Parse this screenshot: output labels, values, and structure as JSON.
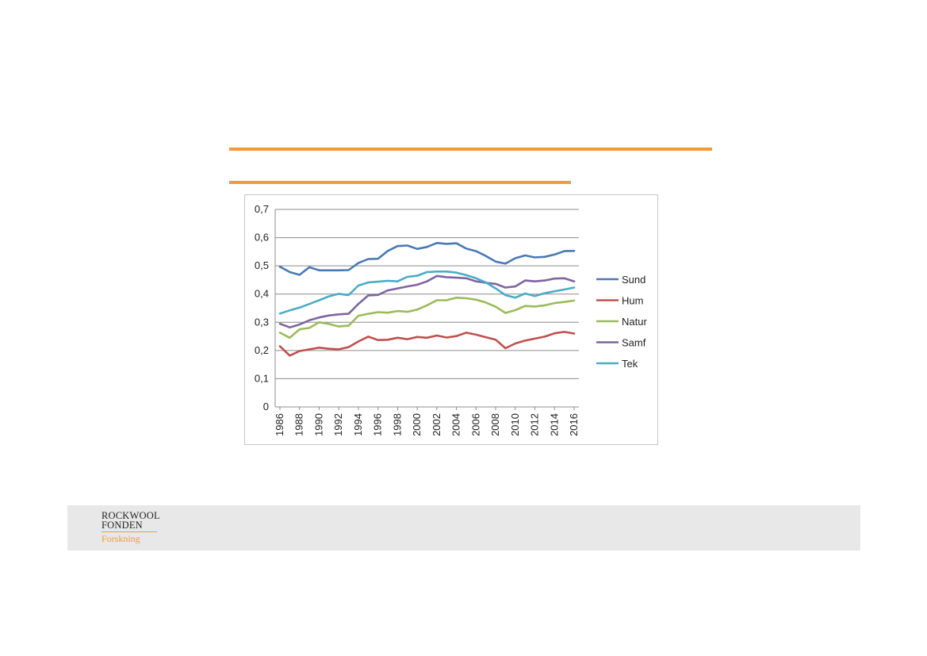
{
  "colors": {
    "accent": "#f39a35",
    "footer_bg": "#e8e8e8",
    "gridline": "#8c8c8c"
  },
  "footer": {
    "logo_line1": "ROCKWOOL",
    "logo_line2": "FONDEN",
    "logo_sub": "Forskning"
  },
  "chart_data": {
    "type": "line",
    "title": "",
    "xlabel": "",
    "ylabel": "",
    "ylim": [
      0,
      0.7
    ],
    "grid": true,
    "legend_position": "right",
    "x": [
      1986,
      1987,
      1988,
      1989,
      1990,
      1991,
      1992,
      1993,
      1994,
      1995,
      1996,
      1997,
      1998,
      1999,
      2000,
      2001,
      2002,
      2003,
      2004,
      2005,
      2006,
      2007,
      2008,
      2009,
      2010,
      2011,
      2012,
      2013,
      2014,
      2015,
      2016
    ],
    "x_tick_labels": [
      "1986",
      "1988",
      "1990",
      "1992",
      "1994",
      "1996",
      "1998",
      "2000",
      "2002",
      "2004",
      "2006",
      "2008",
      "2010",
      "2012",
      "2014",
      "2016"
    ],
    "y_ticks": [
      0,
      0.1,
      0.2,
      0.3,
      0.4,
      0.5,
      0.6,
      0.7
    ],
    "y_tick_labels": [
      "0",
      "0,1",
      "0,2",
      "0,3",
      "0,4",
      "0,5",
      "0,6",
      "0,7"
    ],
    "series": [
      {
        "name": "Sund",
        "color": "#4a7ab5",
        "values": [
          0.497,
          0.478,
          0.468,
          0.495,
          0.484,
          0.484,
          0.484,
          0.485,
          0.51,
          0.524,
          0.525,
          0.553,
          0.57,
          0.572,
          0.56,
          0.567,
          0.581,
          0.578,
          0.58,
          0.561,
          0.552,
          0.535,
          0.515,
          0.508,
          0.527,
          0.537,
          0.53,
          0.532,
          0.54,
          0.552,
          0.553
        ]
      },
      {
        "name": "Hum",
        "color": "#c0504d",
        "values": [
          0.215,
          0.182,
          0.198,
          0.204,
          0.21,
          0.206,
          0.204,
          0.212,
          0.232,
          0.249,
          0.237,
          0.238,
          0.245,
          0.24,
          0.248,
          0.245,
          0.253,
          0.246,
          0.251,
          0.263,
          0.256,
          0.247,
          0.238,
          0.208,
          0.225,
          0.235,
          0.242,
          0.249,
          0.261,
          0.266,
          0.26
        ]
      },
      {
        "name": "Natur",
        "color": "#9bbb59",
        "values": [
          0.263,
          0.245,
          0.275,
          0.28,
          0.3,
          0.294,
          0.285,
          0.288,
          0.323,
          0.33,
          0.336,
          0.334,
          0.34,
          0.337,
          0.345,
          0.36,
          0.378,
          0.378,
          0.387,
          0.385,
          0.38,
          0.37,
          0.355,
          0.333,
          0.343,
          0.358,
          0.356,
          0.36,
          0.368,
          0.372,
          0.377
        ]
      },
      {
        "name": "Samf",
        "color": "#8064a2",
        "values": [
          0.295,
          0.282,
          0.292,
          0.307,
          0.317,
          0.324,
          0.328,
          0.33,
          0.365,
          0.395,
          0.397,
          0.413,
          0.42,
          0.427,
          0.433,
          0.445,
          0.464,
          0.46,
          0.458,
          0.456,
          0.445,
          0.44,
          0.436,
          0.423,
          0.427,
          0.448,
          0.445,
          0.448,
          0.455,
          0.456,
          0.445
        ]
      },
      {
        "name": "Tek",
        "color": "#4bacc6",
        "values": [
          0.331,
          0.342,
          0.352,
          0.365,
          0.378,
          0.392,
          0.401,
          0.396,
          0.43,
          0.441,
          0.444,
          0.447,
          0.445,
          0.461,
          0.465,
          0.478,
          0.48,
          0.48,
          0.476,
          0.467,
          0.456,
          0.441,
          0.42,
          0.396,
          0.387,
          0.402,
          0.393,
          0.403,
          0.41,
          0.416,
          0.423
        ]
      }
    ]
  }
}
